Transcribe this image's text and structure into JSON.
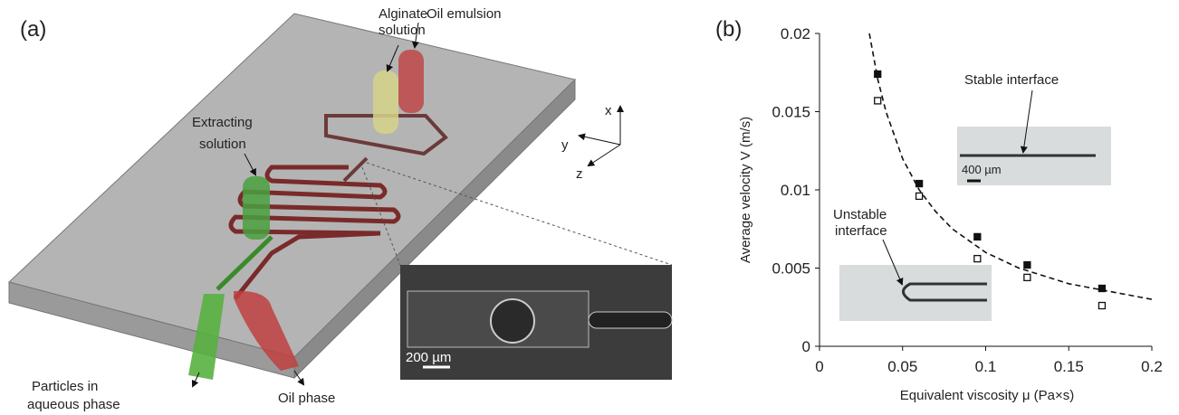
{
  "panel_a": {
    "label": "(a)",
    "alginate": [
      "Alginate",
      "solution"
    ],
    "oil_emulsion": "Oil emulsion",
    "extracting": [
      "Extracting",
      "solution"
    ],
    "particles": [
      "Particles in",
      "aqueous phase"
    ],
    "oil_phase": "Oil phase",
    "scale_bar": "200 µm",
    "axes": [
      "x",
      "y",
      "z"
    ]
  },
  "chart_data": {
    "type": "scatter",
    "panel_label": "(b)",
    "x_label": "Equivalent  viscosity μ (Pa×s)",
    "y_label": "Average velocity V (m/s)",
    "xlim": [
      0,
      0.2
    ],
    "xticks": [
      0,
      0.05,
      0.1,
      0.15,
      0.2
    ],
    "ylim": [
      0,
      0.02
    ],
    "yticks": [
      0,
      0.005,
      0.01,
      0.015,
      0.02
    ],
    "series": [
      {
        "marker": "filled-square",
        "color": "#111111",
        "x": [
          0.035,
          0.06,
          0.095,
          0.125,
          0.17
        ],
        "values": [
          0.0174,
          0.0104,
          0.007,
          0.0052,
          0.0037
        ]
      },
      {
        "marker": "open-square",
        "color": "#111111",
        "x": [
          0.035,
          0.06,
          0.095,
          0.125,
          0.17
        ],
        "values": [
          0.0157,
          0.0096,
          0.0056,
          0.0044,
          0.0026
        ]
      },
      {
        "marker": "dashed-line",
        "color": "#111111",
        "x": [
          0.03,
          0.035,
          0.04,
          0.05,
          0.06,
          0.07,
          0.08,
          0.1,
          0.12,
          0.15,
          0.2
        ],
        "values": [
          0.02,
          0.0171,
          0.015,
          0.012,
          0.01,
          0.0086,
          0.0075,
          0.006,
          0.005,
          0.004,
          0.003
        ]
      }
    ],
    "annotations": {
      "stable": "Stable interface",
      "scale_bar": "400 µm",
      "unstable": [
        "Unstable",
        "interface"
      ]
    }
  }
}
